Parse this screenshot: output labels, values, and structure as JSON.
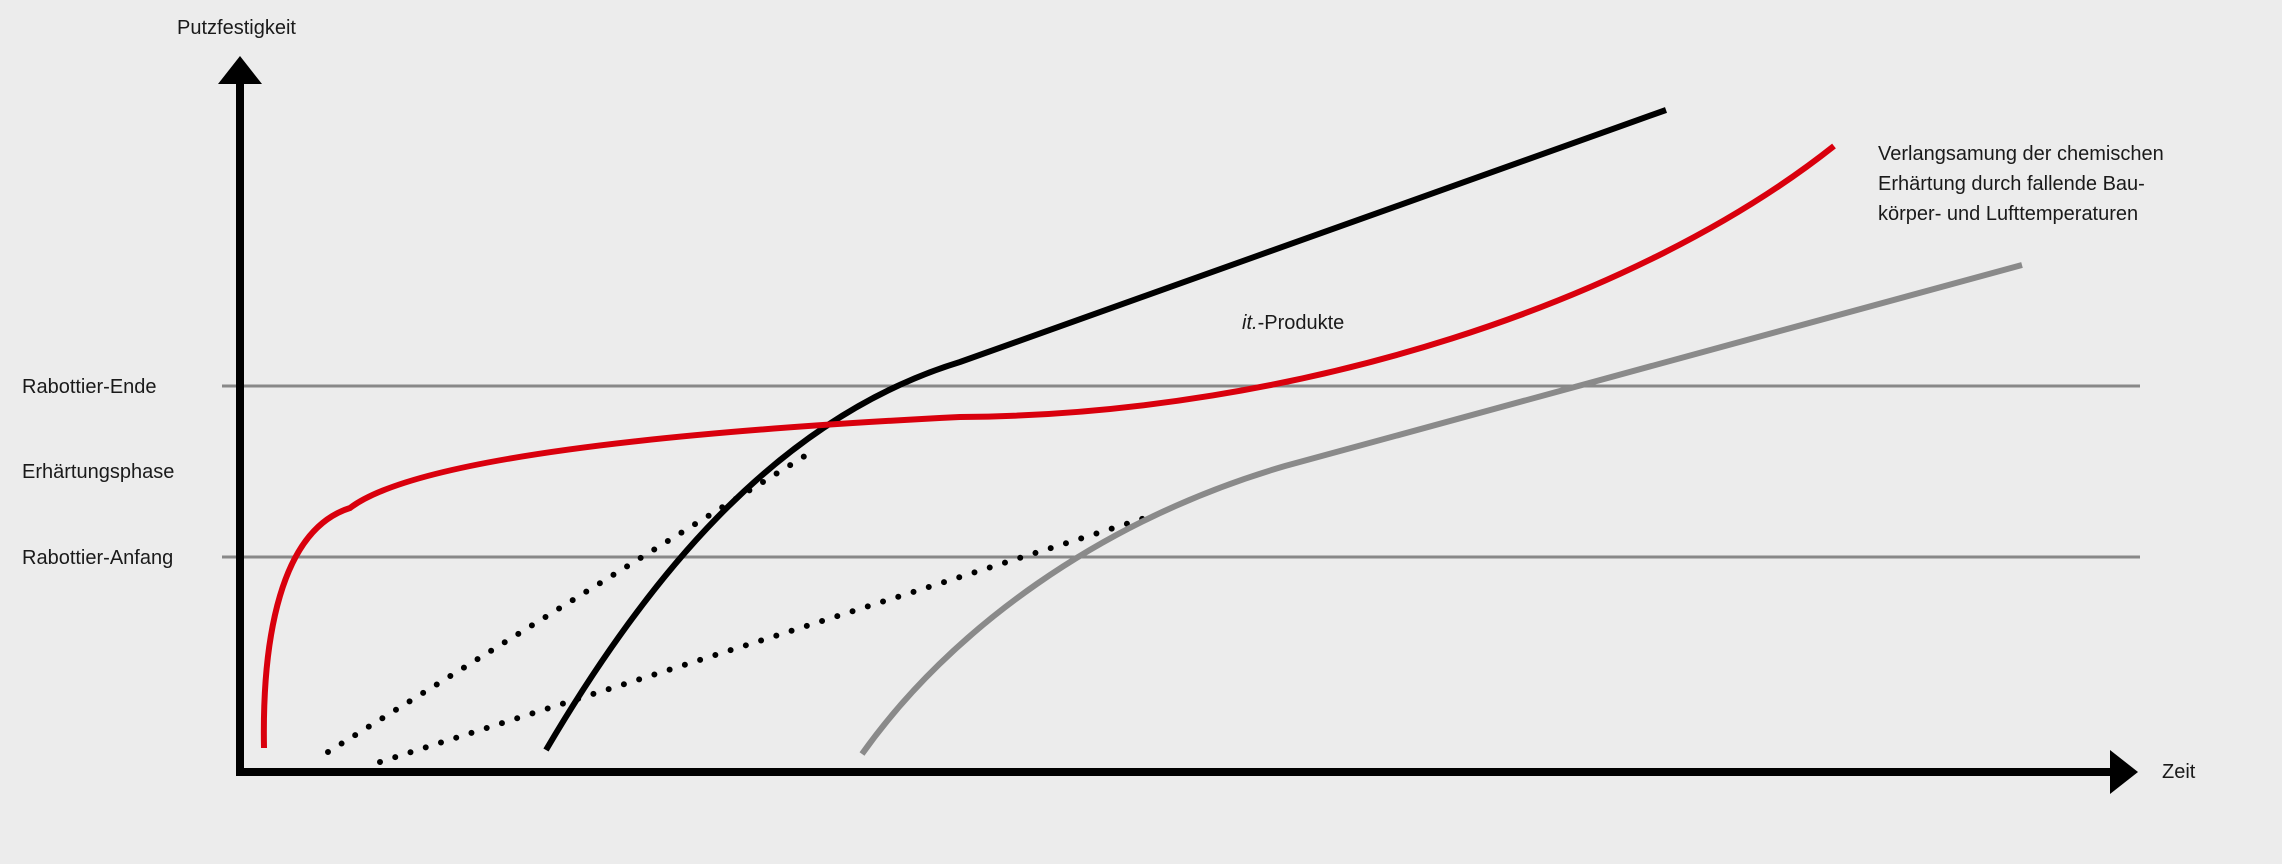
{
  "axes": {
    "y_label": "Putzfestigkeit",
    "x_label": "Zeit"
  },
  "levels": {
    "end": "Rabottier-Ende",
    "phase": "Erhärtungsphase",
    "start": "Rabottier-Anfang"
  },
  "annotations": {
    "product_italic": "it.",
    "product_rest": "-Produkte",
    "slowdown_line1": "Verlangsamung der chemischen",
    "slowdown_line2": "Erhärtung durch fallende Bau-",
    "slowdown_line3": "körper- und Lufttemperaturen"
  },
  "colors": {
    "background": "#ececec",
    "axis": "#000000",
    "reference_lines": "#888888",
    "product_curve": "#d9000d",
    "comparison_curve": "#000000",
    "slow_curve": "#8a8a8a",
    "dotted_guides": "#000000"
  }
}
